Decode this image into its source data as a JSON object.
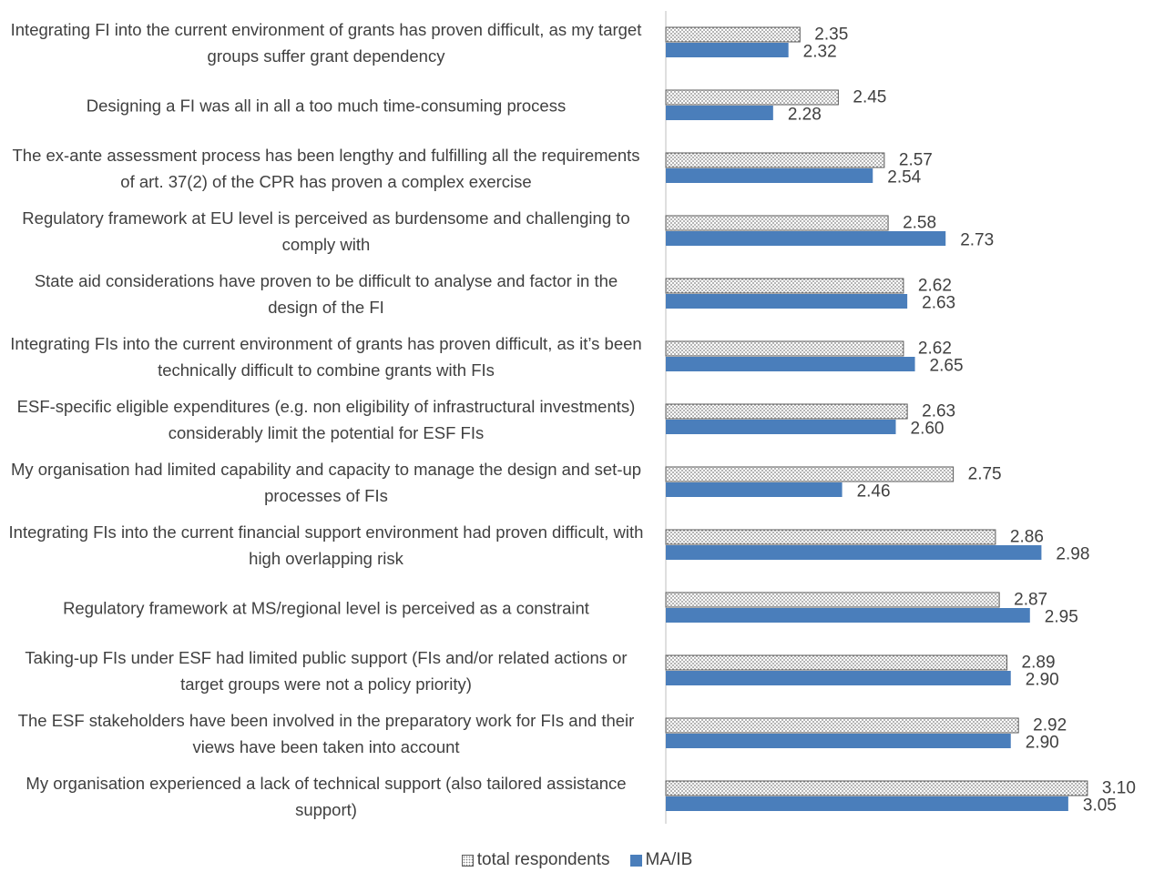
{
  "chart_data": {
    "type": "hbar",
    "categories": [
      "Integrating FI into the current environment of grants has proven difficult, as my target groups suffer grant dependency",
      "Designing a FI was all in all a too much time-consuming process",
      "The ex-ante assessment process has been lengthy and fulfilling all the requirements of art. 37(2) of the CPR has proven a complex exercise",
      "Regulatory framework at EU level is perceived as burdensome and challenging to comply with",
      "State aid considerations have proven to be difficult to analyse and factor in the design of the FI",
      "Integrating FIs into the current environment of grants has proven difficult, as it’s been technically difficult to combine grants with FIs",
      "ESF-specific eligible expenditures (e.g. non eligibility of infrastructural investments) considerably limit the potential for ESF FIs",
      "My organisation had limited capability and capacity to manage the design and set-up processes of FIs",
      "Integrating FIs into the current financial support environment had proven difficult, with high overlapping risk",
      "Regulatory framework at MS/regional level is perceived as a constraint",
      "Taking-up FIs under ESF had limited public support (FIs and/or related actions or target groups were not a policy priority)",
      "The ESF stakeholders have been involved in the preparatory work for FIs and their views have been taken into account",
      "My organisation experienced a lack of technical support (also tailored assistance support)"
    ],
    "series": [
      {
        "name": "total respondents",
        "color": "#808080",
        "pattern": "dots",
        "values": [
          2.35,
          2.45,
          2.57,
          2.58,
          2.62,
          2.62,
          2.63,
          2.75,
          2.86,
          2.87,
          2.89,
          2.92,
          3.1
        ],
        "value_labels": [
          "2.35",
          "2.45",
          "2.57",
          "2.58",
          "2.62",
          "2.62",
          "2.63",
          "2.75",
          "2.86",
          "2.87",
          "2.89",
          "2.92",
          "3.10"
        ]
      },
      {
        "name": "MA/IB",
        "color": "#4a7ebb",
        "values": [
          2.32,
          2.28,
          2.54,
          2.73,
          2.63,
          2.65,
          2.6,
          2.46,
          2.98,
          2.95,
          2.9,
          2.9,
          3.05
        ],
        "value_labels": [
          "2.32",
          "2.28",
          "2.54",
          "2.73",
          "2.63",
          "2.65",
          "2.60",
          "2.46",
          "2.98",
          "2.95",
          "2.90",
          "2.90",
          "3.05"
        ]
      }
    ],
    "xlim": [
      2,
      3.2
    ],
    "legend": "bottom"
  }
}
